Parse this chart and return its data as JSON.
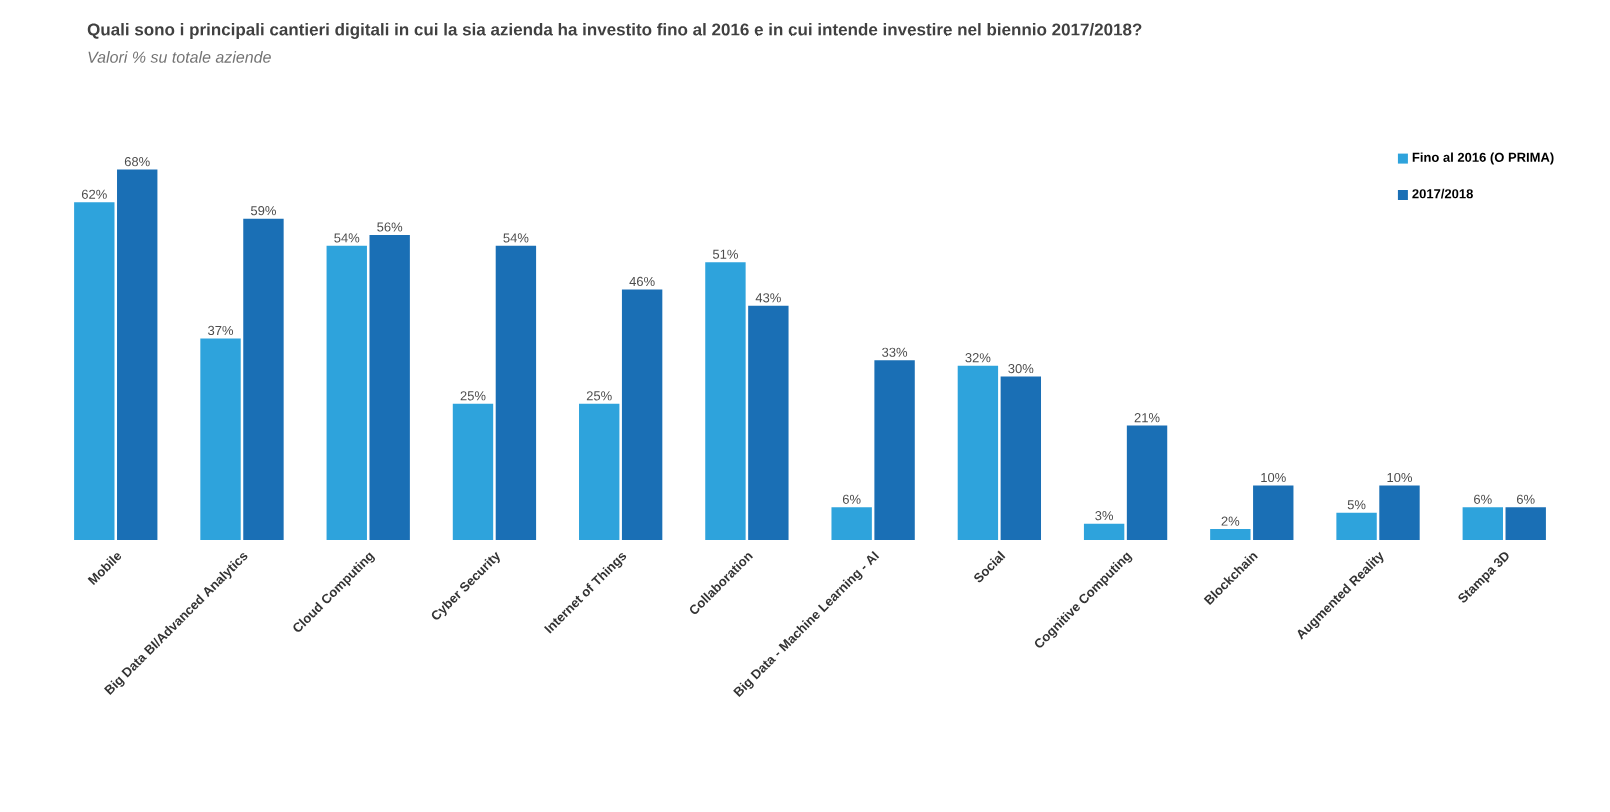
{
  "chart_data": {
    "type": "bar",
    "title": "Quali sono i principali cantieri digitali in cui la sia azienda ha investito fino al 2016 e in cui intende investire nel biennio 2017/2018?",
    "subtitle": "Valori % su totale aziende",
    "categories": [
      "Mobile",
      "Big Data BI/Advanced Analytics",
      "Cloud Computing",
      "Cyber Security",
      "Internet of Things",
      "Collaboration",
      "Big Data - Machine Learning - AI",
      "Social",
      "Cognitive Computing",
      "Blockchain",
      "Augmented Reality",
      "Stampa 3D"
    ],
    "series": [
      {
        "name": "Fino al 2016 (O PRIMA)",
        "color": "#2ea3dc",
        "values": [
          62,
          37,
          54,
          25,
          25,
          51,
          6,
          32,
          3,
          2,
          5,
          6
        ],
        "value_labels": [
          "62%",
          "37%",
          "54%",
          "25%",
          "25%",
          "51%",
          "6%",
          "32%",
          "3%",
          "2%",
          "5%",
          "6%"
        ]
      },
      {
        "name": "2017/2018",
        "color": "#1a6fb5",
        "values": [
          68,
          59,
          56,
          54,
          46,
          43,
          33,
          30,
          21,
          10,
          10,
          6
        ],
        "value_labels": [
          "68%",
          "59%",
          "56%",
          "54%",
          "46%",
          "43%",
          "33%",
          "30%",
          "21%",
          "10%",
          "10%",
          "6%"
        ]
      }
    ],
    "legend": "top right"
  }
}
